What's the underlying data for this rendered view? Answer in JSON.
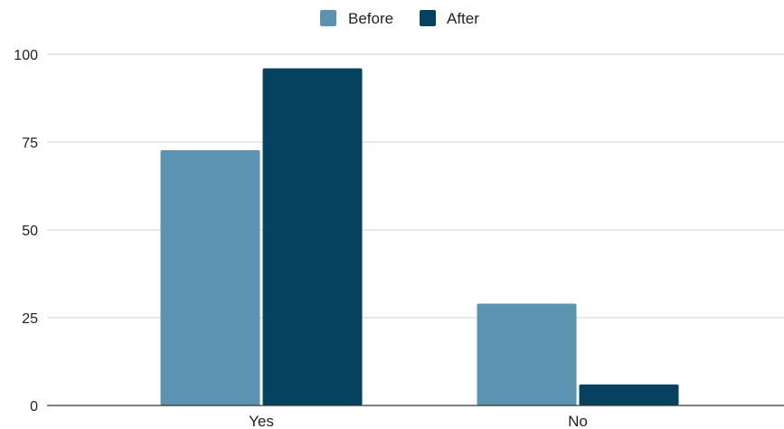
{
  "chart_data": {
    "type": "bar",
    "categories": [
      "Yes",
      "No"
    ],
    "series": [
      {
        "name": "Before",
        "values": [
          72.7,
          29
        ],
        "color": "#5b93b0"
      },
      {
        "name": "After",
        "values": [
          96,
          6
        ],
        "color": "#05425f"
      }
    ],
    "y_ticks": [
      "0",
      "25",
      "50",
      "75",
      "100"
    ],
    "ylim": [
      0,
      100
    ],
    "grid": true,
    "legend_position": "top-center"
  }
}
